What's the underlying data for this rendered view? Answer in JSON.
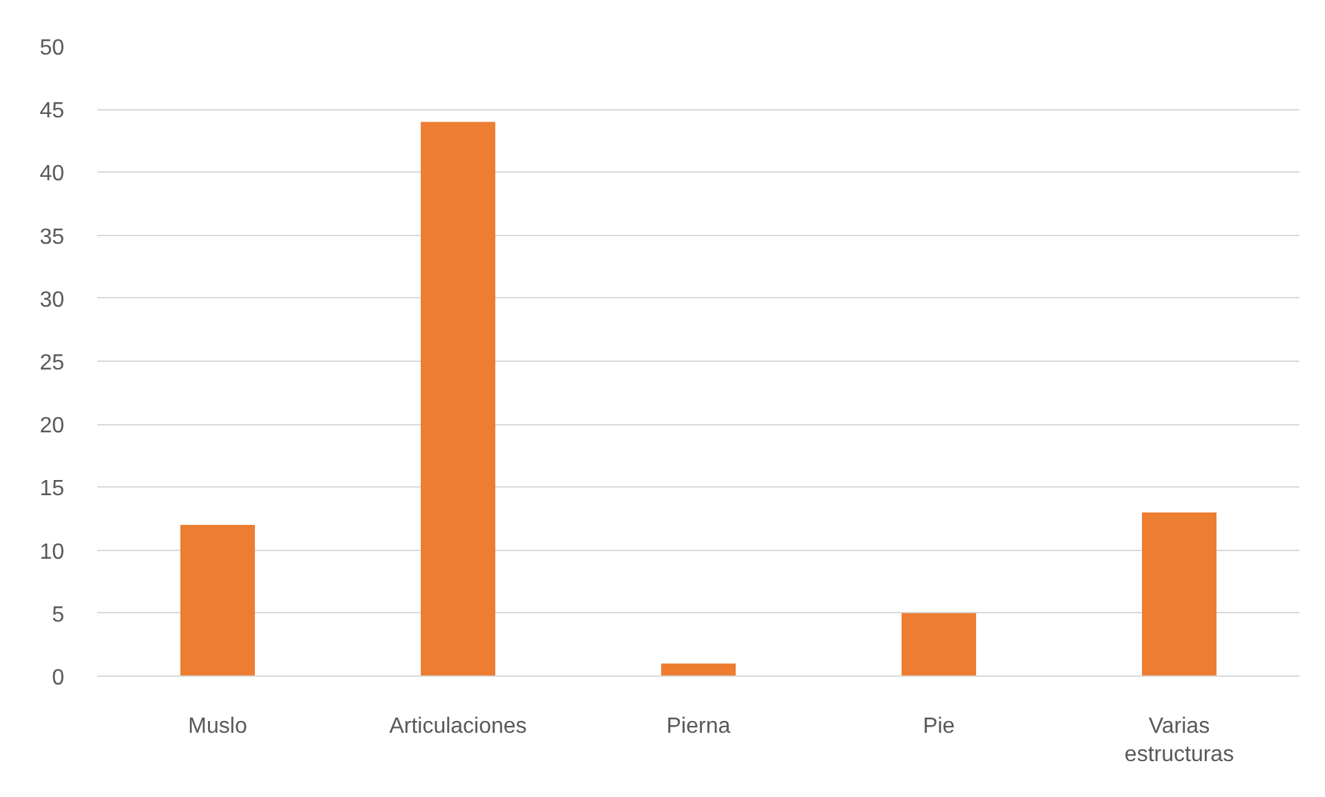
{
  "chart_data": {
    "type": "bar",
    "categories": [
      "Muslo",
      "Articulaciones",
      "Pierna",
      "Pie",
      "Varias estructuras"
    ],
    "values": [
      12,
      44,
      1,
      5,
      13
    ],
    "color": "#ed7d31",
    "ylim": [
      0,
      50
    ],
    "yticks": [
      0,
      5,
      10,
      15,
      20,
      25,
      30,
      35,
      40,
      45,
      50
    ],
    "grid": "y"
  }
}
